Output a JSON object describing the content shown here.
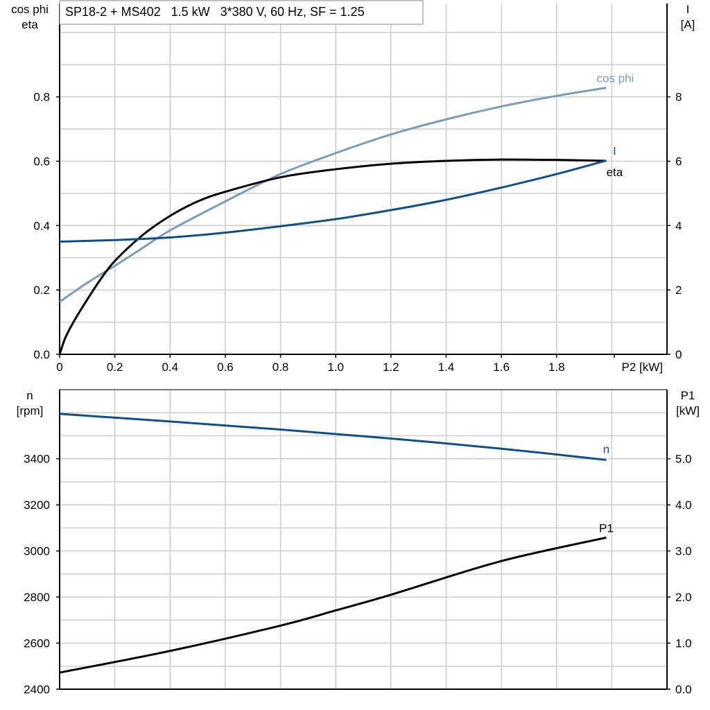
{
  "title": "SP18-2 + MS402   1.5 kW   3*380 V, 60 Hz, SF = 1.25",
  "colors": {
    "cos_phi": "#7a9cbc",
    "current": "#0d4f8b",
    "eta": "#000000",
    "speed": "#0d4f8b",
    "p1": "#000000",
    "grid": "#cccccc"
  },
  "chart_data": [
    {
      "type": "line",
      "xlabel": "P2 [kW]",
      "ylabel_left": [
        "cos phi",
        "eta"
      ],
      "ylabel_right": [
        "I",
        "[A]"
      ],
      "xlim": [
        0,
        2.2
      ],
      "ylim_left": [
        0,
        1.09
      ],
      "ylim_right": [
        0,
        10.9
      ],
      "x_ticks": [
        "0",
        "0.2",
        "0.4",
        "0.6",
        "0.8",
        "1.0",
        "1.2",
        "1.4",
        "1.6",
        "1.8"
      ],
      "left_ticks": [
        "0.0",
        "0.2",
        "0.4",
        "0.6",
        "0.8"
      ],
      "right_ticks": [
        "0",
        "2",
        "4",
        "6",
        "8"
      ],
      "grid": true,
      "series": [
        {
          "name": "cos phi",
          "axis": "left",
          "color": "#7a9cbc",
          "x": [
            0,
            0.1,
            0.2,
            0.3,
            0.4,
            0.6,
            0.8,
            1.0,
            1.2,
            1.4,
            1.6,
            1.8,
            1.98
          ],
          "y": [
            0.163,
            0.222,
            0.275,
            0.33,
            0.385,
            0.475,
            0.56,
            0.625,
            0.683,
            0.73,
            0.77,
            0.803,
            0.828
          ]
        },
        {
          "name": "eta",
          "axis": "left",
          "color": "#000000",
          "x": [
            0,
            0.02,
            0.05,
            0.1,
            0.15,
            0.2,
            0.3,
            0.4,
            0.5,
            0.6,
            0.8,
            1.0,
            1.2,
            1.4,
            1.6,
            1.8,
            1.98
          ],
          "y": [
            0,
            0.05,
            0.1,
            0.17,
            0.235,
            0.29,
            0.37,
            0.43,
            0.475,
            0.505,
            0.55,
            0.575,
            0.592,
            0.601,
            0.605,
            0.604,
            0.601
          ]
        },
        {
          "name": "I",
          "axis": "right",
          "color": "#0d4f8b",
          "x": [
            0,
            0.2,
            0.4,
            0.6,
            0.8,
            1.0,
            1.2,
            1.4,
            1.6,
            1.8,
            1.98
          ],
          "y": [
            3.5,
            3.55,
            3.63,
            3.78,
            3.98,
            4.2,
            4.48,
            4.8,
            5.18,
            5.6,
            6.02
          ]
        }
      ]
    },
    {
      "type": "line",
      "xlim": [
        0,
        2.2
      ],
      "ylabel_left": [
        "n",
        "[rpm]"
      ],
      "ylabel_right": [
        "P1",
        "[kW]"
      ],
      "ylim_left": [
        2400,
        3700
      ],
      "ylim_right": [
        0,
        6.5
      ],
      "left_ticks": [
        "2400",
        "2600",
        "2800",
        "3000",
        "3200",
        "3400"
      ],
      "right_ticks": [
        "0.0",
        "1.0",
        "2.0",
        "3.0",
        "4.0",
        "5.0"
      ],
      "grid": true,
      "series": [
        {
          "name": "n",
          "axis": "left",
          "color": "#0d4f8b",
          "x": [
            0,
            0.4,
            0.8,
            1.2,
            1.6,
            1.98
          ],
          "y": [
            3595,
            3562,
            3527,
            3488,
            3444,
            3395
          ]
        },
        {
          "name": "P1",
          "axis": "right",
          "color": "#000000",
          "x": [
            0,
            0.4,
            0.8,
            1.0,
            1.2,
            1.6,
            1.98
          ],
          "y": [
            0.36,
            0.83,
            1.38,
            1.71,
            2.05,
            2.78,
            3.29
          ]
        }
      ]
    }
  ]
}
